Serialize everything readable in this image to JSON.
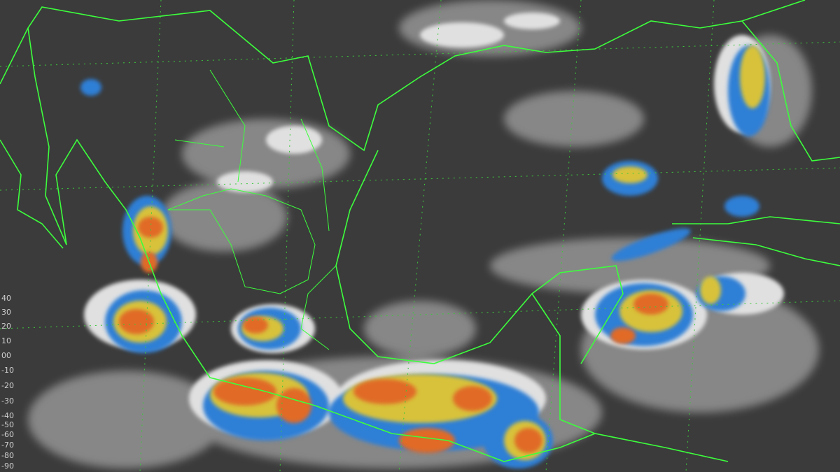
{
  "image": {
    "type": "infrared satellite image",
    "colors": {
      "background": "#3c3c3c",
      "clouds": "#d8d8d8",
      "cold_blue": "#2f7fd6",
      "cold_yellow": "#d8c23a",
      "cold_orange": "#e8802a",
      "cold_red": "#d63a1f",
      "borders": "#3cff3c",
      "gridlines": "#3cc83c"
    }
  },
  "temperature_scale": {
    "labels": [
      "40",
      "30",
      "20",
      "10",
      "00",
      "-10",
      "-20",
      "-30",
      "-40",
      "-50",
      "-60",
      "-70",
      "-80",
      "-90"
    ]
  }
}
